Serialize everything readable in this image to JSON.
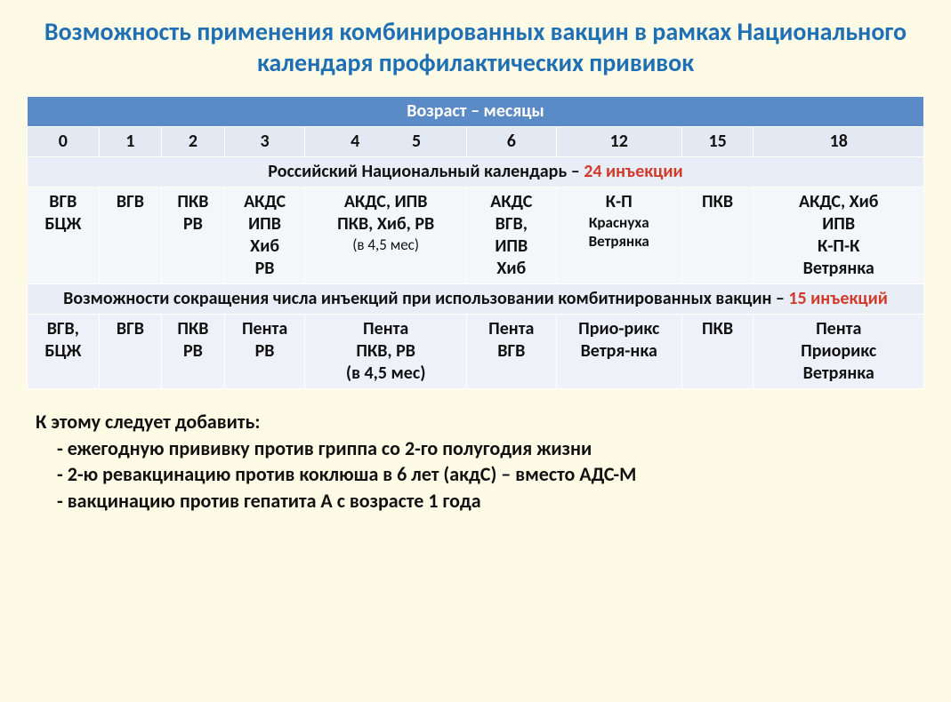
{
  "colors": {
    "background": "#fdfbe6",
    "title": "#1f6fb4",
    "header_band_bg": "#5b8bc6",
    "header_band_fg": "#ffffff",
    "age_row_bg": "#e3e9f2",
    "section_row_bg": "#e9eef6",
    "data_row_bg": "#f4f6fa",
    "data_row_alt_bg": "#eef2f8",
    "highlight_red": "#d13a2b",
    "highlight_blue": "#1f6fb4",
    "body_text": "#111111",
    "cell_border": "#ffffff"
  },
  "fonts": {
    "family": "Calibri, Arial, sans-serif",
    "title_size_pt": 21,
    "cell_size_pt": 15,
    "footer_size_pt": 16
  },
  "title": "Возможность применения комбинированных вакцин в рамках Национального календаря профилактических прививок",
  "table": {
    "header_band": "Возраст – месяцы",
    "age_labels": [
      "0",
      "1",
      "2",
      "3",
      "4             5",
      "6",
      "12",
      "15",
      "18"
    ],
    "column_widths_pct": [
      8,
      7,
      7,
      9,
      18,
      10,
      14,
      8,
      19
    ],
    "section1": {
      "text": "Российский Национальный календарь –",
      "count": "24 инъекции"
    },
    "row1": {
      "c0": "ВГВ\nБЦЖ",
      "c1": "ВГВ",
      "c2": "ПКВ\nРВ",
      "c3": "АКДС\nИПВ\nХиб\nРВ",
      "c45_main": "АКДС, ИПВ\nПКВ, Хиб, РВ",
      "c45_note": "(в 4,5 мес)",
      "c6": "АКДС\nВГВ,\nИПВ\nХиб",
      "c12_main": "К-П",
      "c12_sub": "Краснуха\nВетрянка",
      "c15": "ПКВ",
      "c18": "АКДС, Хиб\nИПВ\nК-П-К\nВетрянка"
    },
    "section2": {
      "text": "Возможности сокращения числа инъекций при использовании комбитнированных вакцин – ",
      "count": "15 инъекций"
    },
    "row2": {
      "c0": "ВГВ,\nБЦЖ",
      "c1": "ВГВ",
      "c2": "ПКВ\nРВ",
      "c3_blue": "Пента\nРВ",
      "c45_blue": "Пента\nПКВ,  РВ",
      "c45_note": "(в 4,5 мес)",
      "c6_blue": "Пента\nВГВ",
      "c12_blue": "Прио-рикс\nВетря-нка",
      "c15_blue": "ПКВ",
      "c18_blue": "Пента\nПриорикс\nВетрянка"
    }
  },
  "footer": {
    "lead": "К этому следует добавить:",
    "items": [
      "- ежегодную прививку против гриппа со 2-го полугодия жизни",
      "- 2-ю ревакцинацию против коклюша в 6 лет (акдС) – вместо АДС-М",
      "- вакцинацию против гепатита А с возрасте 1 года"
    ]
  }
}
